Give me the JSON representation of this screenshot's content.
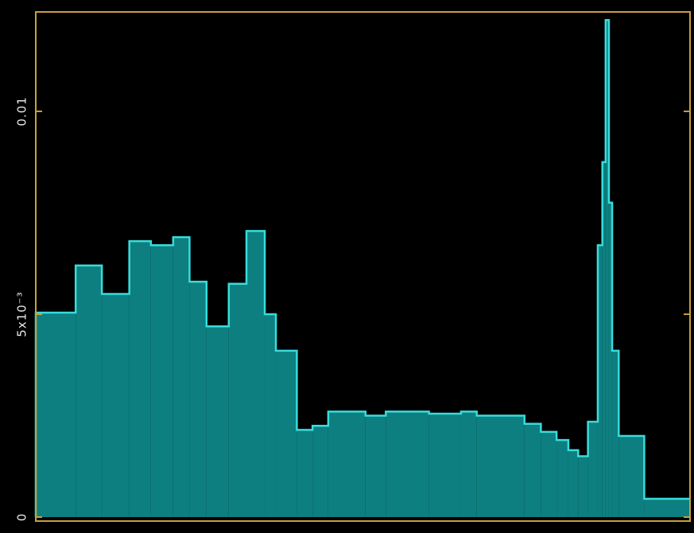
{
  "chart_data": {
    "type": "histogram",
    "bins": [
      0,
      0.061,
      0.101,
      0.143,
      0.176,
      0.21,
      0.235,
      0.261,
      0.295,
      0.322,
      0.35,
      0.367,
      0.399,
      0.423,
      0.447,
      0.504,
      0.535,
      0.601,
      0.65,
      0.674,
      0.747,
      0.772,
      0.796,
      0.814,
      0.829,
      0.844,
      0.859,
      0.866,
      0.871,
      0.876,
      0.881,
      0.891,
      0.93,
      1
    ],
    "values": [
      0.00504,
      0.0062,
      0.0055,
      0.0068,
      0.0067,
      0.0069,
      0.0058,
      0.0047,
      0.00575,
      0.00705,
      0.005,
      0.0041,
      0.00215,
      0.00225,
      0.0026,
      0.0025,
      0.0026,
      0.00255,
      0.0026,
      0.0025,
      0.0023,
      0.0021,
      0.0019,
      0.00165,
      0.0015,
      0.00235,
      0.0067,
      0.00875,
      0.01225,
      0.00775,
      0.0041,
      0.002,
      0.00045
    ],
    "color": "#0e7f80",
    "edge_color": "#38dcdc",
    "frame_color": "#c9a03c",
    "xlim": [
      0,
      1
    ],
    "ylim": [
      0,
      0.01245
    ],
    "yticks": [
      0,
      {
        "value": 0.005,
        "label": "5x10⁻³"
      },
      0.01
    ]
  }
}
